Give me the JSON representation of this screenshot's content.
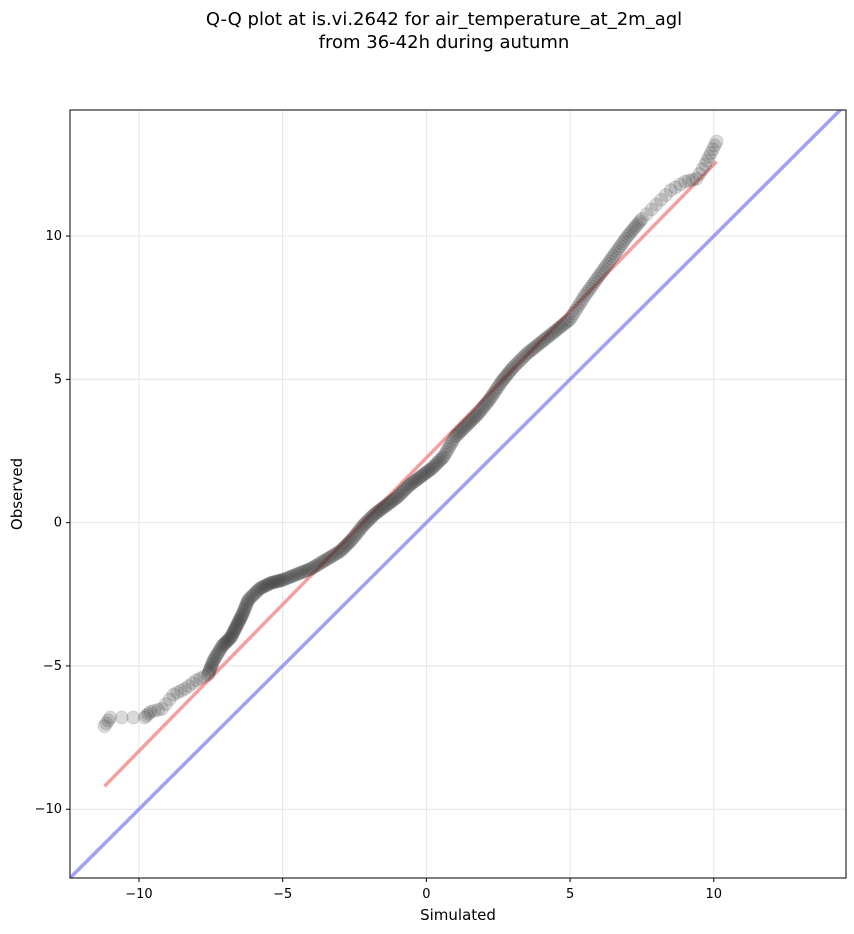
{
  "chart_data": {
    "type": "scatter",
    "title": "Q-Q plot at is.vi.2642 for air_temperature_at_2m_agl",
    "subtitle": "from 36-42h during autumn",
    "xlabel": "Simulated",
    "ylabel": "Observed",
    "xlim": [
      -12.4,
      14.6
    ],
    "ylim": [
      -12.4,
      14.4
    ],
    "xticks": [
      -10,
      -5,
      0,
      5,
      10
    ],
    "yticks": [
      -10,
      -5,
      0,
      5,
      10
    ],
    "xtick_labels": [
      "−10",
      "−5",
      "0",
      "5",
      "10"
    ],
    "ytick_labels": [
      "−10",
      "−5",
      "0",
      "5",
      "10"
    ],
    "grid": true,
    "colors": {
      "points": "#333333",
      "fit_line": "#f08080",
      "identity_line": "#8080f0"
    },
    "series": [
      {
        "kind": "quantiles",
        "x": [
          -11.2,
          -11.0,
          -9.8,
          -9.6,
          -9.2,
          -8.8,
          -8.4,
          -8.0,
          -7.6,
          -7.4,
          -7.1,
          -6.8,
          -6.6,
          -6.4,
          -6.2,
          -5.8,
          -5.4,
          -5.0,
          -4.5,
          -4.0,
          -3.5,
          -3.0,
          -2.6,
          -2.2,
          -1.8,
          -1.4,
          -1.0,
          -0.6,
          -0.2,
          0.2,
          0.6,
          1.0,
          1.4,
          1.8,
          2.2,
          2.6,
          3.0,
          3.5,
          4.0,
          4.5,
          5.0,
          5.5,
          6.0,
          6.5,
          7.0,
          7.5,
          8.0,
          8.5,
          9.0,
          9.4,
          9.7,
          9.9,
          10.1
        ],
        "y": [
          -7.1,
          -6.8,
          -6.8,
          -6.6,
          -6.5,
          -6.0,
          -5.8,
          -5.5,
          -5.3,
          -4.8,
          -4.3,
          -4.0,
          -3.6,
          -3.2,
          -2.7,
          -2.3,
          -2.1,
          -2.0,
          -1.8,
          -1.6,
          -1.3,
          -1.0,
          -0.6,
          -0.1,
          0.3,
          0.6,
          0.9,
          1.3,
          1.6,
          1.9,
          2.3,
          3.0,
          3.4,
          3.8,
          4.3,
          4.9,
          5.4,
          5.9,
          6.3,
          6.7,
          7.1,
          7.9,
          8.6,
          9.3,
          10.0,
          10.6,
          11.1,
          11.6,
          11.9,
          12.0,
          12.5,
          12.9,
          13.3
        ]
      },
      {
        "kind": "fit_line",
        "x": [
          -11.2,
          10.1
        ],
        "y": [
          -9.2,
          12.6
        ]
      },
      {
        "kind": "identity_line",
        "x": [
          -12.4,
          14.6
        ],
        "y": [
          -12.4,
          14.6
        ]
      }
    ]
  }
}
